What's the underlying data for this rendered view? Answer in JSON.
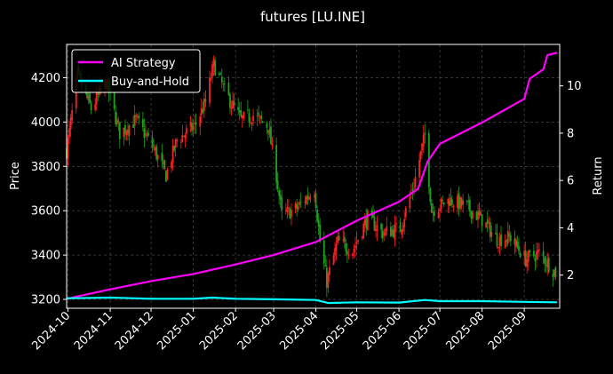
{
  "chart_data": {
    "type": "line",
    "title": "futures [LU.INE]",
    "ylabel": "Price",
    "y2label": "Return",
    "ylim": [
      3160,
      4350
    ],
    "y2lim": [
      0.6,
      11.75
    ],
    "xlim": [
      "2024-09-30",
      "2025-09-27"
    ],
    "yticks": [
      3200,
      3400,
      3600,
      3800,
      4000,
      4200
    ],
    "y2ticks": [
      2,
      4,
      6,
      8,
      10
    ],
    "xticks": [
      {
        "date": "2024-10-01",
        "label": "2024-10"
      },
      {
        "date": "2024-11-01",
        "label": "2024-11"
      },
      {
        "date": "2024-12-01",
        "label": "2024-12"
      },
      {
        "date": "2025-01-01",
        "label": "2025-01"
      },
      {
        "date": "2025-02-01",
        "label": "2025-02"
      },
      {
        "date": "2025-03-01",
        "label": "2025-03"
      },
      {
        "date": "2025-04-01",
        "label": "2025-04"
      },
      {
        "date": "2025-05-01",
        "label": "2025-05"
      },
      {
        "date": "2025-06-01",
        "label": "2025-06"
      },
      {
        "date": "2025-07-01",
        "label": "2025-07"
      },
      {
        "date": "2025-08-01",
        "label": "2025-08"
      },
      {
        "date": "2025-09-01",
        "label": "2025-09"
      }
    ],
    "grid": true,
    "legend_position": "top-left",
    "colors": {
      "background": "#000000",
      "up": "#ff2020",
      "down": "#1fa01f",
      "grid": "#555555"
    },
    "price_path": [
      [
        "2024-09-30",
        3870
      ],
      [
        "2024-10-08",
        4210
      ],
      [
        "2024-10-18",
        4060
      ],
      [
        "2024-10-29",
        4180
      ],
      [
        "2024-11-08",
        3950
      ],
      [
        "2024-11-20",
        4010
      ],
      [
        "2024-12-03",
        3880
      ],
      [
        "2024-12-12",
        3760
      ],
      [
        "2024-12-20",
        3920
      ],
      [
        "2025-01-02",
        3980
      ],
      [
        "2025-01-10",
        4090
      ],
      [
        "2025-01-16",
        4260
      ],
      [
        "2025-01-24",
        4140
      ],
      [
        "2025-02-05",
        4010
      ],
      [
        "2025-02-14",
        4030
      ],
      [
        "2025-02-25",
        3980
      ],
      [
        "2025-03-03",
        3760
      ],
      [
        "2025-03-07",
        3580
      ],
      [
        "2025-03-18",
        3610
      ],
      [
        "2025-03-31",
        3700
      ],
      [
        "2025-04-04",
        3460
      ],
      [
        "2025-04-09",
        3280
      ],
      [
        "2025-04-17",
        3460
      ],
      [
        "2025-04-28",
        3420
      ],
      [
        "2025-05-09",
        3570
      ],
      [
        "2025-05-20",
        3500
      ],
      [
        "2025-06-02",
        3520
      ],
      [
        "2025-06-12",
        3720
      ],
      [
        "2025-06-20",
        3940
      ],
      [
        "2025-06-25",
        3600
      ],
      [
        "2025-07-08",
        3650
      ],
      [
        "2025-07-20",
        3620
      ],
      [
        "2025-08-01",
        3560
      ],
      [
        "2025-08-12",
        3470
      ],
      [
        "2025-08-22",
        3480
      ],
      [
        "2025-09-02",
        3380
      ],
      [
        "2025-09-12",
        3410
      ],
      [
        "2025-09-24",
        3320
      ]
    ],
    "series": [
      {
        "name": "AI Strategy",
        "color": "#ff00ff",
        "points": [
          [
            "2024-09-30",
            1.0
          ],
          [
            "2024-11-01",
            1.4
          ],
          [
            "2024-12-01",
            1.75
          ],
          [
            "2025-01-01",
            2.05
          ],
          [
            "2025-02-01",
            2.45
          ],
          [
            "2025-03-01",
            2.85
          ],
          [
            "2025-04-01",
            3.4
          ],
          [
            "2025-05-01",
            4.3
          ],
          [
            "2025-06-01",
            5.1
          ],
          [
            "2025-06-15",
            5.65
          ],
          [
            "2025-06-22",
            6.8
          ],
          [
            "2025-07-01",
            7.55
          ],
          [
            "2025-08-01",
            8.45
          ],
          [
            "2025-09-01",
            9.45
          ],
          [
            "2025-09-05",
            10.3
          ],
          [
            "2025-09-15",
            10.7
          ],
          [
            "2025-09-18",
            11.3
          ],
          [
            "2025-09-25",
            11.4
          ]
        ]
      },
      {
        "name": "Buy-and-Hold",
        "color": "#00ffff",
        "points": [
          [
            "2024-09-30",
            1.02
          ],
          [
            "2024-11-01",
            1.05
          ],
          [
            "2024-12-01",
            1.0
          ],
          [
            "2025-01-01",
            1.0
          ],
          [
            "2025-01-15",
            1.05
          ],
          [
            "2025-02-01",
            1.0
          ],
          [
            "2025-03-01",
            0.98
          ],
          [
            "2025-04-01",
            0.95
          ],
          [
            "2025-04-10",
            0.82
          ],
          [
            "2025-05-01",
            0.85
          ],
          [
            "2025-06-01",
            0.84
          ],
          [
            "2025-06-20",
            0.95
          ],
          [
            "2025-07-01",
            0.9
          ],
          [
            "2025-08-01",
            0.9
          ],
          [
            "2025-09-01",
            0.87
          ],
          [
            "2025-09-25",
            0.85
          ]
        ]
      }
    ]
  }
}
